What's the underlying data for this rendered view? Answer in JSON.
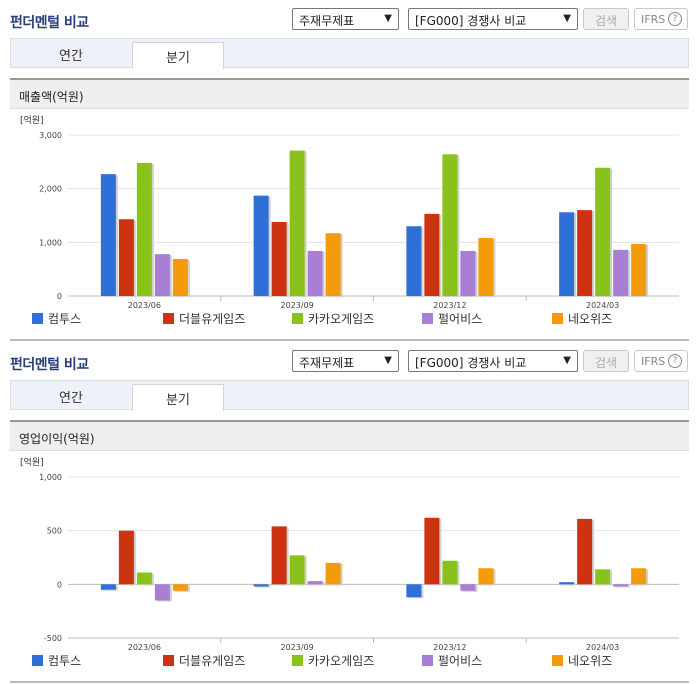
{
  "panels": [
    {
      "title": "펀더멘털 비교",
      "select1": "주재무제표",
      "select2": "[FG000] 경쟁사 비교",
      "search_label": "검색",
      "ifrs_label": "IFRS",
      "help_label": "?",
      "tabs": [
        "연간",
        "분기"
      ],
      "active_tab": "분기",
      "chart_title": "매출액(억원)"
    },
    {
      "title": "펀더멘털 비교",
      "select1": "주재무제표",
      "select2": "[FG000] 경쟁사 비교",
      "search_label": "검색",
      "ifrs_label": "IFRS",
      "help_label": "?",
      "tabs": [
        "연간",
        "분기"
      ],
      "active_tab": "분기",
      "chart_title": "영업이익(억원)"
    }
  ],
  "chart_data": [
    {
      "type": "bar",
      "title": "매출액(억원)",
      "unit_label": "[억원]",
      "categories": [
        "2023/06",
        "2023/09",
        "2023/12",
        "2024/03"
      ],
      "ylim": [
        0,
        3000
      ],
      "yticks": [
        0,
        1000,
        2000,
        3000
      ],
      "ytick_labels": [
        "0",
        "1,000",
        "2,000",
        "3,000"
      ],
      "grid": true,
      "legend": "bottom",
      "series": [
        {
          "name": "컴투스",
          "color": "#2f6fd8",
          "values": [
            2270,
            1870,
            1300,
            1560
          ]
        },
        {
          "name": "더블유게임즈",
          "color": "#cc3311",
          "values": [
            1430,
            1380,
            1530,
            1600
          ]
        },
        {
          "name": "카카오게임즈",
          "color": "#88c21a",
          "values": [
            2480,
            2710,
            2640,
            2390
          ]
        },
        {
          "name": "펄어비스",
          "color": "#a97fd6",
          "values": [
            780,
            840,
            840,
            860
          ]
        },
        {
          "name": "네오위즈",
          "color": "#f59a0b",
          "values": [
            690,
            1170,
            1080,
            970
          ]
        }
      ]
    },
    {
      "type": "bar",
      "title": "영업이익(억원)",
      "unit_label": "[억원]",
      "categories": [
        "2023/06",
        "2023/09",
        "2023/12",
        "2024/03"
      ],
      "ylim": [
        -500,
        1000
      ],
      "yticks": [
        -500,
        0,
        500,
        1000
      ],
      "ytick_labels": [
        "-500",
        "0",
        "500",
        "1,000"
      ],
      "grid": true,
      "legend": "bottom",
      "series": [
        {
          "name": "컴투스",
          "color": "#2f6fd8",
          "values": [
            -50,
            -20,
            -120,
            20
          ]
        },
        {
          "name": "더블유게임즈",
          "color": "#cc3311",
          "values": [
            500,
            540,
            620,
            610
          ]
        },
        {
          "name": "카카오게임즈",
          "color": "#88c21a",
          "values": [
            110,
            270,
            220,
            140
          ]
        },
        {
          "name": "펄어비스",
          "color": "#a97fd6",
          "values": [
            -150,
            30,
            -60,
            -20
          ]
        },
        {
          "name": "네오위즈",
          "color": "#f59a0b",
          "values": [
            -60,
            200,
            150,
            150
          ]
        }
      ]
    }
  ]
}
